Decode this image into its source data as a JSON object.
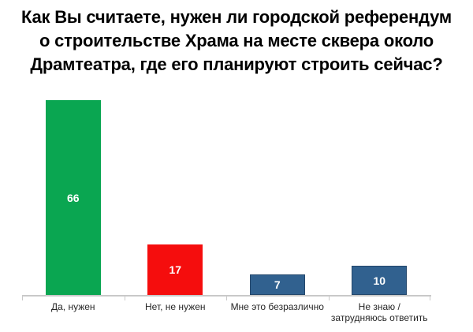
{
  "title": {
    "lines": [
      "Как Вы считаете, нужен ли городской референдум",
      "о строительстве Храма на месте сквера около",
      "Драмтеатра, где его планируют строить сейчас?"
    ],
    "color": "#000000"
  },
  "chart_data": {
    "type": "bar",
    "title": "Как Вы считаете, нужен ли городской референдум о строительстве Храма на месте сквера около Драмтеатра, где его планируют строить сейчас?",
    "categories": [
      "Да, нужен",
      "Нет, не нужен",
      "Мне это безразлично",
      "Не знаю / затрудняюсь ответить"
    ],
    "values": [
      66,
      17,
      7,
      10
    ],
    "value_labels": [
      "66",
      "17",
      "7",
      "10"
    ],
    "bar_colors": [
      "#0aa651",
      "#f50d0d",
      "#31618f",
      "#31618f"
    ],
    "bar_border_colors": [
      "",
      "",
      "#24476b",
      "#24476b"
    ],
    "value_label_color": "#ffffff",
    "axis_color": "#c9c9c9",
    "category_label_color": "#262626",
    "xlabel": "",
    "ylabel": "",
    "ylim": [
      0,
      68
    ],
    "grid": false,
    "legend": false,
    "orientation": "vertical"
  }
}
